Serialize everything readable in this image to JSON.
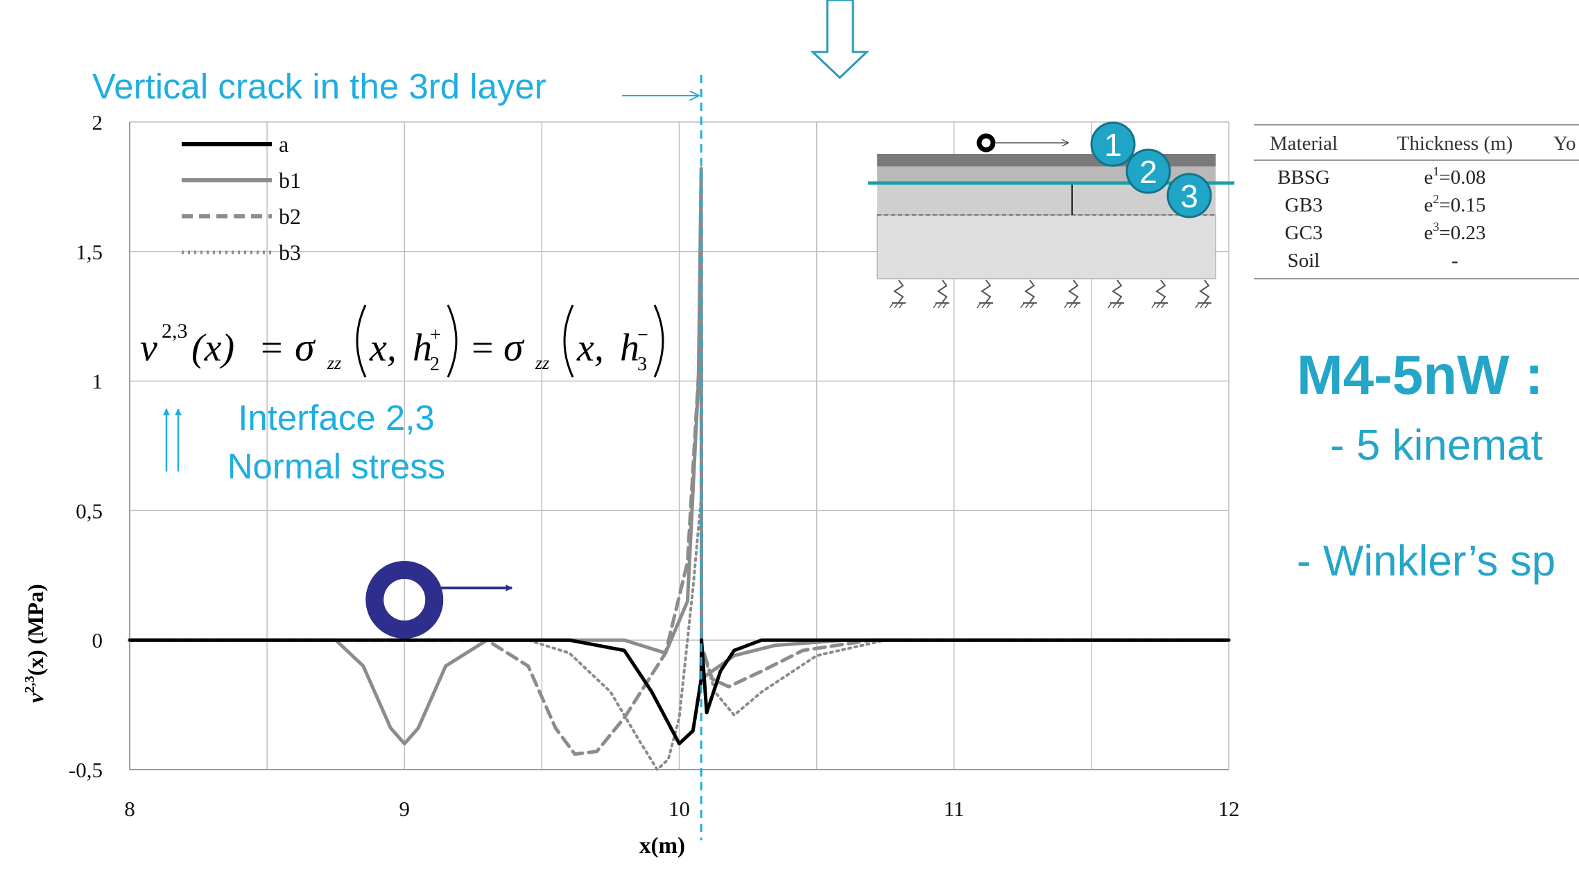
{
  "colors": {
    "accent": "#1eaee0",
    "title_teal": "#25a5c8",
    "wheel_navy": "#2e2e8c",
    "series_a": "#000000",
    "series_b": "#8c8c8c"
  },
  "top_arrow_icon": "down-arrow-icon",
  "annotations": {
    "crack_label": "Vertical crack in the 3rd layer",
    "interface_line1": "Interface 2,3",
    "interface_line2": "Normal stress",
    "formula": {
      "lhs": "ν",
      "lhs_sup": "2,3",
      "x_arg": "(x)",
      "eq": "=",
      "sigma": "σ",
      "sub": "zz",
      "arg_x": "x,",
      "h": "h",
      "h2_sub": "2",
      "h2_sup": "+",
      "h3_sub": "3",
      "h3_sup": "−"
    }
  },
  "inset": {
    "markers": [
      "1",
      "2",
      "3"
    ]
  },
  "material_table": {
    "headers": [
      "Material",
      "Thickness (m)",
      "Yo"
    ],
    "rows": [
      {
        "material": "BBSG",
        "thickness_base": "e",
        "thickness_sup": "1",
        "thickness_val": "=0.08"
      },
      {
        "material": "GB3",
        "thickness_base": "e",
        "thickness_sup": "2",
        "thickness_val": "=0.15"
      },
      {
        "material": "GC3",
        "thickness_base": "e",
        "thickness_sup": "3",
        "thickness_val": "=0.23"
      },
      {
        "material": "Soil",
        "thickness_base": "-",
        "thickness_sup": "",
        "thickness_val": ""
      }
    ]
  },
  "side_text": {
    "heading": "M4-5nW :",
    "line1": "- 5 kinemat",
    "line2": "- Winkler’s sp"
  },
  "chart_data": {
    "type": "line",
    "xlabel": "x(m)",
    "ylabel_base": "ν",
    "ylabel_sup": "2,3",
    "ylabel_rest": "(x) (MPa)",
    "xlim": [
      8,
      12
    ],
    "ylim": [
      -0.5,
      2
    ],
    "xticks": [
      8,
      9,
      10,
      11,
      12
    ],
    "xtick_labels": [
      "8",
      "9",
      "10",
      "11",
      "12"
    ],
    "yticks": [
      -0.5,
      0,
      0.5,
      1,
      1.5,
      2
    ],
    "ytick_labels": [
      "-0,5",
      "0",
      "0,5",
      "1",
      "1,5",
      "2"
    ],
    "grid": true,
    "legend_position": "top-left",
    "crack_x": 10.08,
    "wheel_x": 9.0,
    "series": [
      {
        "name": "a",
        "style": "solid",
        "color": "#000000",
        "x": [
          8,
          9.4,
          9.6,
          9.8,
          9.9,
          10.0,
          10.05,
          10.08,
          10.081,
          10.1,
          10.15,
          10.2,
          10.3,
          10.45,
          12
        ],
        "y": [
          0,
          0,
          0,
          -0.04,
          -0.2,
          -0.4,
          -0.35,
          -0.15,
          0,
          -0.28,
          -0.12,
          -0.04,
          0,
          0,
          0
        ]
      },
      {
        "name": "b1",
        "style": "solid",
        "color": "#8c8c8c",
        "x": [
          8,
          8.75,
          8.85,
          8.95,
          9.0,
          9.05,
          9.15,
          9.3,
          9.8,
          9.95,
          10.03,
          10.07,
          10.08,
          10.081,
          10.12,
          10.2,
          10.35,
          10.6,
          12
        ],
        "y": [
          0,
          0,
          -0.1,
          -0.34,
          -0.4,
          -0.34,
          -0.1,
          0,
          0,
          -0.05,
          0.15,
          1.0,
          1.82,
          -0.15,
          -0.12,
          -0.06,
          -0.02,
          0,
          0
        ]
      },
      {
        "name": "b2",
        "style": "dashed",
        "color": "#8c8c8c",
        "x": [
          8,
          9.3,
          9.45,
          9.55,
          9.62,
          9.7,
          9.8,
          9.95,
          10.03,
          10.08,
          10.081,
          10.12,
          10.18,
          10.3,
          10.45,
          10.7,
          12
        ],
        "y": [
          0,
          0,
          -0.1,
          -0.34,
          -0.44,
          -0.43,
          -0.3,
          -0.05,
          0.3,
          1.2,
          -0.02,
          -0.15,
          -0.18,
          -0.12,
          -0.04,
          0,
          0
        ]
      },
      {
        "name": "b3",
        "style": "dotted",
        "color": "#8c8c8c",
        "x": [
          8,
          9.45,
          9.6,
          9.75,
          9.85,
          9.92,
          9.96,
          10.0,
          10.05,
          10.08,
          10.081,
          10.13,
          10.2,
          10.3,
          10.5,
          10.75,
          12
        ],
        "y": [
          0,
          0,
          -0.05,
          -0.2,
          -0.38,
          -0.5,
          -0.46,
          -0.3,
          0.2,
          0.55,
          -0.02,
          -0.2,
          -0.29,
          -0.2,
          -0.06,
          0,
          0
        ]
      }
    ]
  }
}
